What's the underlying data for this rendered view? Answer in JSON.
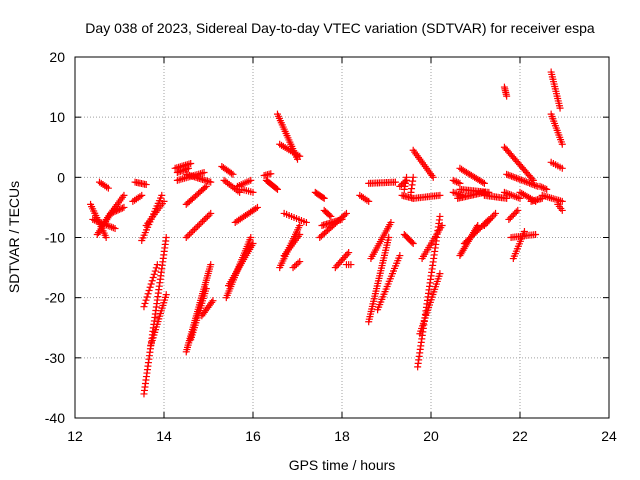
{
  "chart_data": {
    "type": "scatter",
    "title": "Day 038 of 2023, Sidereal Day-to-day VTEC variation (SDTVAR) for receiver espa",
    "xlabel": "GPS time / hours",
    "ylabel": "SDTVAR / TECUs",
    "xlim": [
      12,
      24
    ],
    "ylim": [
      -40,
      20
    ],
    "xticks": [
      12,
      14,
      16,
      18,
      20,
      22,
      24
    ],
    "yticks": [
      -40,
      -30,
      -20,
      -10,
      0,
      10,
      20
    ],
    "grid": true,
    "marker": "+",
    "series": [
      {
        "name": "SDTVAR",
        "color": "#ff0000",
        "arcs": [
          {
            "x0": 12.35,
            "y0": -4.5,
            "x1": 12.7,
            "y1": -10.0,
            "n": 16
          },
          {
            "x0": 12.4,
            "y0": -7.0,
            "x1": 12.9,
            "y1": -8.5,
            "n": 14
          },
          {
            "x0": 12.5,
            "y0": -9.5,
            "x1": 12.85,
            "y1": -5.5,
            "n": 14
          },
          {
            "x0": 12.55,
            "y0": -0.8,
            "x1": 12.75,
            "y1": -1.8,
            "n": 6
          },
          {
            "x0": 12.7,
            "y0": -7.0,
            "x1": 13.1,
            "y1": -3.0,
            "n": 14
          },
          {
            "x0": 12.8,
            "y0": -6.0,
            "x1": 13.1,
            "y1": -5.0,
            "n": 10
          },
          {
            "x0": 13.35,
            "y0": -0.8,
            "x1": 13.6,
            "y1": -1.2,
            "n": 8
          },
          {
            "x0": 13.3,
            "y0": -4.0,
            "x1": 13.5,
            "y1": -3.0,
            "n": 6
          },
          {
            "x0": 13.5,
            "y0": -10.5,
            "x1": 13.95,
            "y1": -3.0,
            "n": 18
          },
          {
            "x0": 13.6,
            "y0": -8.0,
            "x1": 14.0,
            "y1": -4.0,
            "n": 12
          },
          {
            "x0": 13.55,
            "y0": -36.0,
            "x1": 14.05,
            "y1": -10.0,
            "n": 46
          },
          {
            "x0": 13.55,
            "y0": -21.5,
            "x1": 13.85,
            "y1": -14.5,
            "n": 14
          },
          {
            "x0": 13.7,
            "y0": -28.0,
            "x1": 14.05,
            "y1": -19.5,
            "n": 20
          },
          {
            "x0": 14.3,
            "y0": 0.8,
            "x1": 14.55,
            "y1": 1.5,
            "n": 8
          },
          {
            "x0": 14.25,
            "y0": 1.5,
            "x1": 14.6,
            "y1": 2.3,
            "n": 10
          },
          {
            "x0": 14.3,
            "y0": -0.5,
            "x1": 14.9,
            "y1": 0.8,
            "n": 16
          },
          {
            "x0": 14.5,
            "y0": 0.5,
            "x1": 15.05,
            "y1": -0.8,
            "n": 16
          },
          {
            "x0": 14.5,
            "y0": -4.5,
            "x1": 14.95,
            "y1": -1.5,
            "n": 14
          },
          {
            "x0": 14.5,
            "y0": -10.0,
            "x1": 15.05,
            "y1": -6.0,
            "n": 16
          },
          {
            "x0": 14.5,
            "y0": -29.0,
            "x1": 15.05,
            "y1": -14.5,
            "n": 40
          },
          {
            "x0": 14.6,
            "y0": -27.0,
            "x1": 14.95,
            "y1": -18.5,
            "n": 22
          },
          {
            "x0": 14.85,
            "y0": -23.0,
            "x1": 15.1,
            "y1": -20.5,
            "n": 10
          },
          {
            "x0": 15.3,
            "y0": 1.8,
            "x1": 15.55,
            "y1": 0.5,
            "n": 8
          },
          {
            "x0": 15.35,
            "y0": -0.5,
            "x1": 15.7,
            "y1": -2.5,
            "n": 10
          },
          {
            "x0": 15.4,
            "y0": -20.0,
            "x1": 15.95,
            "y1": -10.0,
            "n": 28
          },
          {
            "x0": 15.45,
            "y0": -18.0,
            "x1": 16.0,
            "y1": -11.0,
            "n": 22
          },
          {
            "x0": 15.6,
            "y0": -7.5,
            "x1": 16.1,
            "y1": -5.0,
            "n": 14
          },
          {
            "x0": 15.65,
            "y0": -1.5,
            "x1": 15.95,
            "y1": -0.5,
            "n": 8
          },
          {
            "x0": 15.75,
            "y0": -2.0,
            "x1": 16.0,
            "y1": -2.5,
            "n": 6
          },
          {
            "x0": 16.3,
            "y0": -0.5,
            "x1": 16.55,
            "y1": -2.0,
            "n": 10
          },
          {
            "x0": 16.25,
            "y0": 0.3,
            "x1": 16.4,
            "y1": 0.6,
            "n": 5
          },
          {
            "x0": 16.55,
            "y0": 10.5,
            "x1": 17.0,
            "y1": 3.0,
            "n": 22
          },
          {
            "x0": 16.6,
            "y0": 5.5,
            "x1": 17.05,
            "y1": 3.5,
            "n": 12
          },
          {
            "x0": 16.6,
            "y0": -15.0,
            "x1": 17.05,
            "y1": -8.0,
            "n": 20
          },
          {
            "x0": 16.7,
            "y0": -13.0,
            "x1": 17.05,
            "y1": -9.5,
            "n": 12
          },
          {
            "x0": 16.7,
            "y0": -6.0,
            "x1": 17.2,
            "y1": -7.5,
            "n": 10
          },
          {
            "x0": 16.9,
            "y0": -15.0,
            "x1": 17.05,
            "y1": -14.0,
            "n": 5
          },
          {
            "x0": 17.4,
            "y0": -2.5,
            "x1": 17.6,
            "y1": -3.5,
            "n": 8
          },
          {
            "x0": 17.5,
            "y0": -10.0,
            "x1": 18.1,
            "y1": -6.0,
            "n": 18
          },
          {
            "x0": 17.55,
            "y0": -8.0,
            "x1": 18.0,
            "y1": -7.0,
            "n": 14
          },
          {
            "x0": 17.6,
            "y0": -5.5,
            "x1": 17.75,
            "y1": -6.5,
            "n": 6
          },
          {
            "x0": 17.85,
            "y0": -15.0,
            "x1": 18.15,
            "y1": -12.5,
            "n": 10
          },
          {
            "x0": 18.1,
            "y0": -14.5,
            "x1": 18.2,
            "y1": -14.5,
            "n": 3
          },
          {
            "x0": 18.4,
            "y0": -3.0,
            "x1": 18.6,
            "y1": -4.0,
            "n": 6
          },
          {
            "x0": 18.6,
            "y0": -1.0,
            "x1": 19.2,
            "y1": -0.8,
            "n": 16
          },
          {
            "x0": 18.6,
            "y0": -24.0,
            "x1": 19.05,
            "y1": -10.0,
            "n": 34
          },
          {
            "x0": 18.65,
            "y0": -13.5,
            "x1": 19.1,
            "y1": -7.5,
            "n": 18
          },
          {
            "x0": 18.8,
            "y0": -22.0,
            "x1": 19.3,
            "y1": -13.0,
            "n": 22
          },
          {
            "x0": 19.3,
            "y0": -1.5,
            "x1": 19.45,
            "y1": -0.5,
            "n": 5
          },
          {
            "x0": 19.35,
            "y0": -3.0,
            "x1": 19.6,
            "y1": -3.5,
            "n": 8
          },
          {
            "x0": 19.4,
            "y0": -9.5,
            "x1": 19.6,
            "y1": -11.0,
            "n": 8
          },
          {
            "x0": 19.4,
            "y0": -2.0,
            "x1": 19.45,
            "y1": 0.0,
            "n": 5
          },
          {
            "x0": 19.55,
            "y0": -2.5,
            "x1": 19.6,
            "y1": 0.0,
            "n": 5
          },
          {
            "x0": 19.6,
            "y0": 4.5,
            "x1": 20.05,
            "y1": 0.0,
            "n": 16
          },
          {
            "x0": 19.6,
            "y0": -3.5,
            "x1": 20.2,
            "y1": -3.0,
            "n": 16
          },
          {
            "x0": 19.7,
            "y0": -31.5,
            "x1": 20.2,
            "y1": -6.5,
            "n": 44
          },
          {
            "x0": 19.75,
            "y0": -26.0,
            "x1": 20.2,
            "y1": -16.0,
            "n": 24
          },
          {
            "x0": 19.8,
            "y0": -13.5,
            "x1": 20.25,
            "y1": -8.0,
            "n": 16
          },
          {
            "x0": 20.5,
            "y0": -2.5,
            "x1": 20.7,
            "y1": -3.0,
            "n": 6
          },
          {
            "x0": 20.5,
            "y0": -0.5,
            "x1": 20.65,
            "y1": -1.0,
            "n": 5
          },
          {
            "x0": 20.6,
            "y0": -3.5,
            "x1": 21.2,
            "y1": -2.5,
            "n": 18
          },
          {
            "x0": 20.65,
            "y0": -2.0,
            "x1": 21.3,
            "y1": -2.5,
            "n": 18
          },
          {
            "x0": 20.65,
            "y0": -13.0,
            "x1": 21.05,
            "y1": -8.0,
            "n": 18
          },
          {
            "x0": 20.75,
            "y0": -11.0,
            "x1": 21.3,
            "y1": -7.0,
            "n": 18
          },
          {
            "x0": 20.65,
            "y0": 1.5,
            "x1": 21.2,
            "y1": -1.0,
            "n": 16
          },
          {
            "x0": 21.2,
            "y0": -8.0,
            "x1": 21.45,
            "y1": -6.0,
            "n": 8
          },
          {
            "x0": 21.2,
            "y0": -3.0,
            "x1": 21.7,
            "y1": -3.5,
            "n": 14
          },
          {
            "x0": 21.65,
            "y0": 15.0,
            "x1": 21.7,
            "y1": 13.5,
            "n": 6
          },
          {
            "x0": 21.65,
            "y0": 5.0,
            "x1": 22.3,
            "y1": -0.5,
            "n": 22
          },
          {
            "x0": 21.7,
            "y0": 0.5,
            "x1": 22.4,
            "y1": -1.5,
            "n": 20
          },
          {
            "x0": 21.65,
            "y0": -2.5,
            "x1": 22.0,
            "y1": -3.5,
            "n": 10
          },
          {
            "x0": 21.75,
            "y0": -7.0,
            "x1": 21.95,
            "y1": -5.5,
            "n": 7
          },
          {
            "x0": 21.85,
            "y0": -13.5,
            "x1": 22.1,
            "y1": -9.0,
            "n": 12
          },
          {
            "x0": 21.8,
            "y0": -10.0,
            "x1": 22.35,
            "y1": -9.5,
            "n": 14
          },
          {
            "x0": 22.0,
            "y0": -2.5,
            "x1": 22.35,
            "y1": -4.0,
            "n": 10
          },
          {
            "x0": 22.25,
            "y0": -4.0,
            "x1": 22.5,
            "y1": -3.5,
            "n": 8
          },
          {
            "x0": 22.45,
            "y0": -1.5,
            "x1": 22.6,
            "y1": -2.0,
            "n": 5
          },
          {
            "x0": 22.5,
            "y0": -3.0,
            "x1": 22.95,
            "y1": -4.0,
            "n": 12
          },
          {
            "x0": 22.7,
            "y0": 17.5,
            "x1": 22.9,
            "y1": 11.5,
            "n": 16
          },
          {
            "x0": 22.7,
            "y0": 10.5,
            "x1": 22.95,
            "y1": 5.5,
            "n": 14
          },
          {
            "x0": 22.7,
            "y0": 2.5,
            "x1": 22.95,
            "y1": 1.5,
            "n": 6
          },
          {
            "x0": 22.85,
            "y0": -4.5,
            "x1": 22.95,
            "y1": -5.5,
            "n": 4
          }
        ]
      }
    ]
  }
}
